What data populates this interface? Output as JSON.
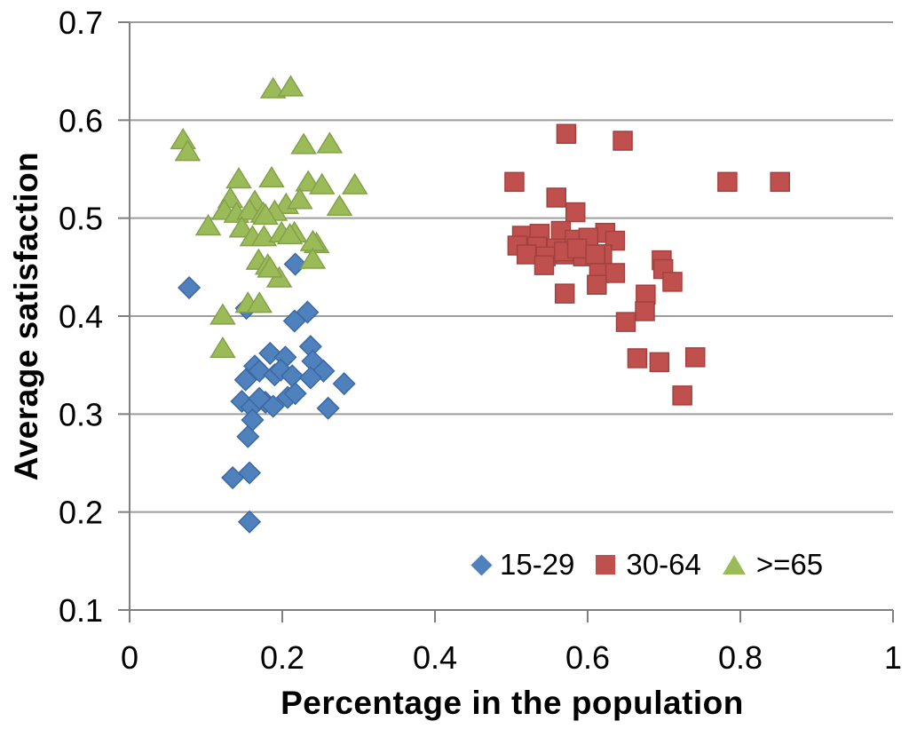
{
  "chart_data": {
    "type": "scatter",
    "title": "",
    "xlabel": "Percentage in the population",
    "ylabel": "Average satisfaction",
    "xlim": [
      0,
      1
    ],
    "ylim": [
      0.1,
      0.7
    ],
    "x_tick_labels": [
      "0",
      "0.2",
      "0.4",
      "0.6",
      "0.8",
      "1"
    ],
    "y_tick_labels": [
      "0.1",
      "0.2",
      "0.3",
      "0.4",
      "0.5",
      "0.6",
      "0.7"
    ],
    "grid": "horizontal-only",
    "gridline_color": "#9d9d9d",
    "axis_color": "#7f7f7f",
    "legend_position": "inside-bottom-right",
    "series": [
      {
        "name": "15-29",
        "marker": "diamond",
        "color": "#4F81BD",
        "edge_color": "#3c69a5",
        "points": [
          [
            0.078,
            0.429
          ],
          [
            0.153,
            0.408
          ],
          [
            0.217,
            0.453
          ],
          [
            0.233,
            0.404
          ],
          [
            0.216,
            0.395
          ],
          [
            0.237,
            0.369
          ],
          [
            0.184,
            0.362
          ],
          [
            0.204,
            0.358
          ],
          [
            0.164,
            0.349
          ],
          [
            0.24,
            0.354
          ],
          [
            0.254,
            0.344
          ],
          [
            0.152,
            0.335
          ],
          [
            0.17,
            0.344
          ],
          [
            0.19,
            0.34
          ],
          [
            0.198,
            0.345
          ],
          [
            0.213,
            0.339
          ],
          [
            0.237,
            0.337
          ],
          [
            0.281,
            0.331
          ],
          [
            0.147,
            0.313
          ],
          [
            0.16,
            0.307
          ],
          [
            0.178,
            0.312
          ],
          [
            0.207,
            0.317
          ],
          [
            0.217,
            0.321
          ],
          [
            0.26,
            0.306
          ],
          [
            0.188,
            0.308
          ],
          [
            0.17,
            0.316
          ],
          [
            0.161,
            0.294
          ],
          [
            0.155,
            0.277
          ],
          [
            0.135,
            0.235
          ],
          [
            0.157,
            0.24
          ],
          [
            0.157,
            0.19
          ]
        ]
      },
      {
        "name": "30-64",
        "marker": "square",
        "color": "#C0504D",
        "edge_color": "#a2413f",
        "points": [
          [
            0.572,
            0.586
          ],
          [
            0.646,
            0.579
          ],
          [
            0.504,
            0.537
          ],
          [
            0.783,
            0.537
          ],
          [
            0.852,
            0.537
          ],
          [
            0.559,
            0.521
          ],
          [
            0.584,
            0.506
          ],
          [
            0.514,
            0.482
          ],
          [
            0.537,
            0.484
          ],
          [
            0.565,
            0.487
          ],
          [
            0.623,
            0.485
          ],
          [
            0.508,
            0.472
          ],
          [
            0.534,
            0.471
          ],
          [
            0.559,
            0.469
          ],
          [
            0.583,
            0.478
          ],
          [
            0.601,
            0.48
          ],
          [
            0.636,
            0.477
          ],
          [
            0.52,
            0.463
          ],
          [
            0.545,
            0.461
          ],
          [
            0.571,
            0.463
          ],
          [
            0.594,
            0.461
          ],
          [
            0.619,
            0.463
          ],
          [
            0.569,
            0.466
          ],
          [
            0.586,
            0.469
          ],
          [
            0.61,
            0.463
          ],
          [
            0.543,
            0.452
          ],
          [
            0.697,
            0.457
          ],
          [
            0.699,
            0.448
          ],
          [
            0.615,
            0.444
          ],
          [
            0.636,
            0.444
          ],
          [
            0.612,
            0.432
          ],
          [
            0.711,
            0.435
          ],
          [
            0.57,
            0.423
          ],
          [
            0.676,
            0.422
          ],
          [
            0.675,
            0.405
          ],
          [
            0.65,
            0.394
          ],
          [
            0.665,
            0.357
          ],
          [
            0.694,
            0.353
          ],
          [
            0.741,
            0.358
          ],
          [
            0.724,
            0.319
          ]
        ]
      },
      {
        "name": ">=65",
        "marker": "triangle",
        "color": "#9BBB59",
        "edge_color": "#83a14a",
        "points": [
          [
            0.188,
            0.632
          ],
          [
            0.211,
            0.634
          ],
          [
            0.07,
            0.58
          ],
          [
            0.076,
            0.568
          ],
          [
            0.228,
            0.575
          ],
          [
            0.262,
            0.576
          ],
          [
            0.143,
            0.54
          ],
          [
            0.186,
            0.541
          ],
          [
            0.234,
            0.537
          ],
          [
            0.252,
            0.534
          ],
          [
            0.295,
            0.534
          ],
          [
            0.132,
            0.52
          ],
          [
            0.164,
            0.517
          ],
          [
            0.205,
            0.514
          ],
          [
            0.223,
            0.519
          ],
          [
            0.275,
            0.512
          ],
          [
            0.124,
            0.508
          ],
          [
            0.14,
            0.505
          ],
          [
            0.157,
            0.508
          ],
          [
            0.175,
            0.505
          ],
          [
            0.19,
            0.507
          ],
          [
            0.178,
            0.503
          ],
          [
            0.103,
            0.492
          ],
          [
            0.147,
            0.49
          ],
          [
            0.161,
            0.481
          ],
          [
            0.176,
            0.481
          ],
          [
            0.199,
            0.485
          ],
          [
            0.216,
            0.485
          ],
          [
            0.21,
            0.483
          ],
          [
            0.245,
            0.474
          ],
          [
            0.24,
            0.476
          ],
          [
            0.169,
            0.457
          ],
          [
            0.181,
            0.452
          ],
          [
            0.24,
            0.458
          ],
          [
            0.196,
            0.439
          ],
          [
            0.184,
            0.449
          ],
          [
            0.155,
            0.413
          ],
          [
            0.17,
            0.413
          ],
          [
            0.122,
            0.401
          ],
          [
            0.122,
            0.367
          ]
        ]
      }
    ]
  }
}
